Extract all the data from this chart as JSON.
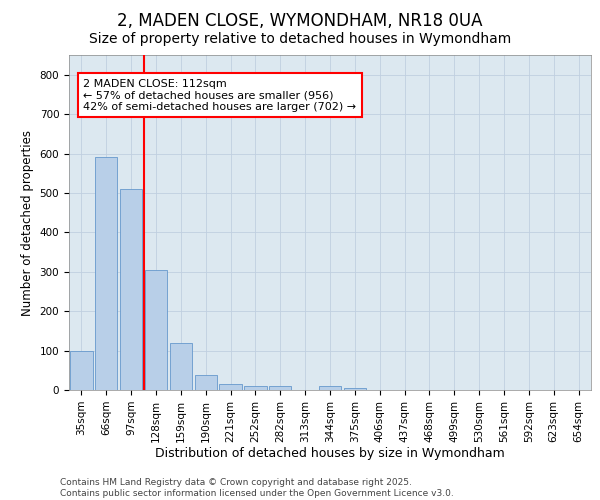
{
  "title1": "2, MADEN CLOSE, WYMONDHAM, NR18 0UA",
  "title2": "Size of property relative to detached houses in Wymondham",
  "xlabel": "Distribution of detached houses by size in Wymondham",
  "ylabel": "Number of detached properties",
  "categories": [
    "35sqm",
    "66sqm",
    "97sqm",
    "128sqm",
    "159sqm",
    "190sqm",
    "221sqm",
    "252sqm",
    "282sqm",
    "313sqm",
    "344sqm",
    "375sqm",
    "406sqm",
    "437sqm",
    "468sqm",
    "499sqm",
    "530sqm",
    "561sqm",
    "592sqm",
    "623sqm",
    "654sqm"
  ],
  "values": [
    100,
    590,
    510,
    305,
    120,
    38,
    15,
    10,
    10,
    0,
    10,
    5,
    0,
    0,
    0,
    0,
    0,
    0,
    0,
    0,
    0
  ],
  "bar_color": "#b8cfe8",
  "bar_edge_color": "#6699cc",
  "annotation_text": "2 MADEN CLOSE: 112sqm\n← 57% of detached houses are smaller (956)\n42% of semi-detached houses are larger (702) →",
  "annotation_box_color": "white",
  "annotation_box_edge_color": "red",
  "line_color": "red",
  "ylim": [
    0,
    850
  ],
  "yticks": [
    0,
    100,
    200,
    300,
    400,
    500,
    600,
    700,
    800
  ],
  "grid_color": "#c0cfe0",
  "bg_color": "#dce8f0",
  "footer_text": "Contains HM Land Registry data © Crown copyright and database right 2025.\nContains public sector information licensed under the Open Government Licence v3.0.",
  "title1_fontsize": 12,
  "title2_fontsize": 10,
  "tick_fontsize": 7.5,
  "xlabel_fontsize": 9,
  "ylabel_fontsize": 8.5,
  "annotation_fontsize": 8,
  "footer_fontsize": 6.5
}
